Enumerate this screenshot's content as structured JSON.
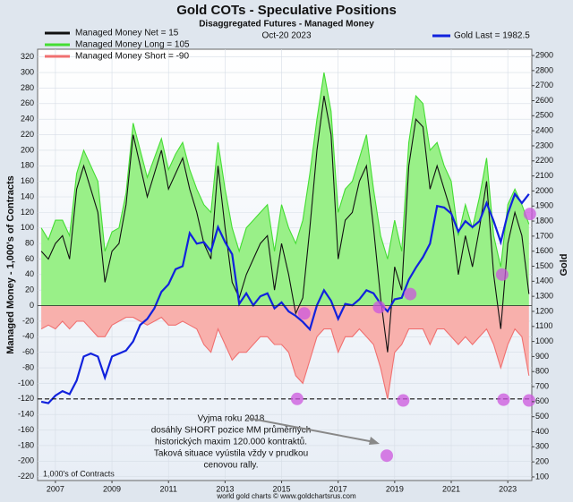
{
  "chart_data": {
    "type": "line",
    "title": "Gold COTs - Speculative Positions",
    "subtitle": "Disaggregated Futures - Managed Money",
    "date": "Oct-20  2023",
    "ylabel": "Managed Money - 1,000's of Contracts",
    "y2label": "Gold",
    "note": "1,000's of Contracts",
    "footer": "world gold charts © www.goldchartsrus.com",
    "annotation": [
      "Vyjma roku 2018",
      "dosáhly SHORT pozice MM průměrných",
      "historických maxim 120.000 kontraktů.",
      "Taková situace vyústila vždy v prudkou",
      "cenovou rally."
    ],
    "x": [
      2006.5,
      2006.75,
      2007,
      2007.25,
      2007.5,
      2007.75,
      2008,
      2008.25,
      2008.5,
      2008.75,
      2009,
      2009.25,
      2009.5,
      2009.75,
      2010,
      2010.25,
      2010.5,
      2010.75,
      2011,
      2011.25,
      2011.5,
      2011.75,
      2012,
      2012.25,
      2012.5,
      2012.75,
      2013,
      2013.25,
      2013.5,
      2013.75,
      2014,
      2014.25,
      2014.5,
      2014.75,
      2015,
      2015.25,
      2015.5,
      2015.75,
      2016,
      2016.25,
      2016.5,
      2016.75,
      2017,
      2017.25,
      2017.5,
      2017.75,
      2018,
      2018.25,
      2018.5,
      2018.75,
      2019,
      2019.25,
      2019.5,
      2019.75,
      2020,
      2020.25,
      2020.5,
      2020.75,
      2021,
      2021.25,
      2021.5,
      2021.75,
      2022,
      2022.25,
      2022.5,
      2022.75,
      2023,
      2023.25,
      2023.5,
      2023.75
    ],
    "series": [
      {
        "name": "Managed Money Long = 105",
        "color": "#44dd33",
        "fill": "#99f088",
        "area": true,
        "values": [
          100,
          85,
          110,
          110,
          90,
          170,
          200,
          180,
          160,
          70,
          95,
          100,
          145,
          235,
          200,
          165,
          190,
          215,
          175,
          195,
          210,
          175,
          150,
          130,
          120,
          210,
          150,
          100,
          70,
          100,
          110,
          120,
          130,
          70,
          130,
          100,
          80,
          110,
          170,
          240,
          300,
          250,
          120,
          150,
          160,
          190,
          220,
          150,
          90,
          60,
          110,
          70,
          210,
          270,
          260,
          200,
          210,
          180,
          160,
          90,
          130,
          100,
          140,
          190,
          90,
          50,
          130,
          150,
          130,
          105
        ]
      },
      {
        "name": "Managed Money Short = -90",
        "color": "#f07070",
        "fill": "#f8b0ac",
        "area": true,
        "values": [
          -30,
          -25,
          -30,
          -20,
          -30,
          -20,
          -20,
          -30,
          -40,
          -40,
          -25,
          -20,
          -15,
          -15,
          -20,
          -25,
          -20,
          -15,
          -25,
          -25,
          -20,
          -25,
          -30,
          -50,
          -60,
          -30,
          -50,
          -70,
          -60,
          -60,
          -50,
          -40,
          -40,
          -50,
          -50,
          -60,
          -90,
          -100,
          -70,
          -40,
          -30,
          -30,
          -60,
          -40,
          -40,
          -30,
          -40,
          -50,
          -80,
          -120,
          -60,
          -50,
          -30,
          -30,
          -30,
          -50,
          -30,
          -30,
          -40,
          -50,
          -40,
          -50,
          -40,
          -30,
          -50,
          -80,
          -50,
          -30,
          -40,
          -90
        ]
      },
      {
        "name": "Managed Money Net = 15",
        "color": "#111111",
        "values": [
          70,
          60,
          80,
          90,
          60,
          150,
          180,
          150,
          120,
          30,
          70,
          80,
          130,
          220,
          180,
          140,
          170,
          200,
          150,
          170,
          190,
          150,
          120,
          80,
          60,
          180,
          100,
          30,
          10,
          40,
          60,
          80,
          90,
          20,
          80,
          40,
          -10,
          10,
          100,
          200,
          270,
          220,
          60,
          110,
          120,
          160,
          180,
          100,
          10,
          -60,
          50,
          20,
          180,
          240,
          230,
          150,
          180,
          150,
          120,
          40,
          90,
          50,
          100,
          160,
          40,
          -30,
          80,
          120,
          90,
          15
        ]
      },
      {
        "name": "Gold Last = 1982.5",
        "color": "#1122dd",
        "axis": "y2",
        "values": [
          600,
          590,
          640,
          670,
          650,
          740,
          900,
          920,
          900,
          760,
          900,
          920,
          940,
          1000,
          1110,
          1150,
          1220,
          1330,
          1380,
          1480,
          1500,
          1720,
          1650,
          1660,
          1600,
          1760,
          1660,
          1580,
          1250,
          1320,
          1240,
          1300,
          1320,
          1220,
          1260,
          1200,
          1170,
          1130,
          1080,
          1240,
          1340,
          1270,
          1150,
          1250,
          1240,
          1280,
          1340,
          1320,
          1250,
          1200,
          1280,
          1290,
          1410,
          1490,
          1560,
          1650,
          1900,
          1890,
          1850,
          1730,
          1800,
          1760,
          1800,
          1920,
          1800,
          1660,
          1850,
          1980,
          1920,
          1980
        ]
      }
    ],
    "xlim": [
      2006.37,
      2023.85
    ],
    "xticks": [
      2007,
      2009,
      2011,
      2013,
      2015,
      2017,
      2019,
      2021,
      2023
    ],
    "ylim": [
      -225,
      330
    ],
    "yticks": [
      -220,
      -200,
      -180,
      -160,
      -140,
      -120,
      -100,
      -80,
      -60,
      -40,
      -20,
      0,
      20,
      40,
      60,
      80,
      100,
      120,
      140,
      160,
      180,
      200,
      220,
      240,
      260,
      280,
      300,
      320
    ],
    "y2lim": [
      76,
      2942
    ],
    "y2ticks": [
      100,
      200,
      300,
      400,
      500,
      600,
      700,
      800,
      900,
      1000,
      1100,
      1200,
      1300,
      1400,
      1500,
      1600,
      1700,
      1800,
      1900,
      2000,
      2100,
      2200,
      2300,
      2400,
      2500,
      2600,
      2700,
      2800,
      2900
    ],
    "grid": true,
    "hline": -120,
    "highlight_color": "#cc55dd",
    "highlights": [
      {
        "x": 2015.8,
        "y": -10
      },
      {
        "x": 2015.55,
        "y": -120
      },
      {
        "x": 2018.45,
        "y": -2
      },
      {
        "x": 2018.72,
        "y": -193
      },
      {
        "x": 2019.3,
        "y": -122
      },
      {
        "x": 2019.55,
        "y": 15
      },
      {
        "x": 2022.8,
        "y": 40
      },
      {
        "x": 2022.85,
        "y": -121
      },
      {
        "x": 2023.75,
        "y": -122
      },
      {
        "x": 2023.78,
        "y": 118
      }
    ]
  }
}
